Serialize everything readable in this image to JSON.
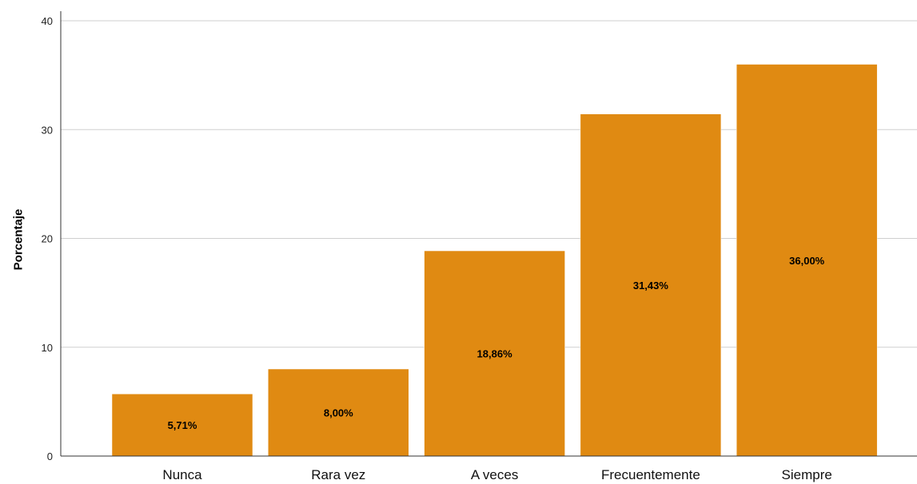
{
  "chart_data": {
    "type": "bar",
    "title": "",
    "xlabel": "",
    "ylabel": "Porcentaje",
    "categories": [
      "Nunca",
      "Rara vez",
      "A veces",
      "Frecuentemente",
      "Siempre"
    ],
    "values": [
      5.71,
      8.0,
      18.86,
      31.43,
      36.0
    ],
    "data_labels": [
      "5,71%",
      "8,00%",
      "18,86%",
      "31,43%",
      "36,00%"
    ],
    "yticks": [
      0,
      10,
      20,
      30,
      40
    ],
    "ylim": [
      0,
      40
    ],
    "grid": true,
    "bar_color": "#E08A12"
  }
}
